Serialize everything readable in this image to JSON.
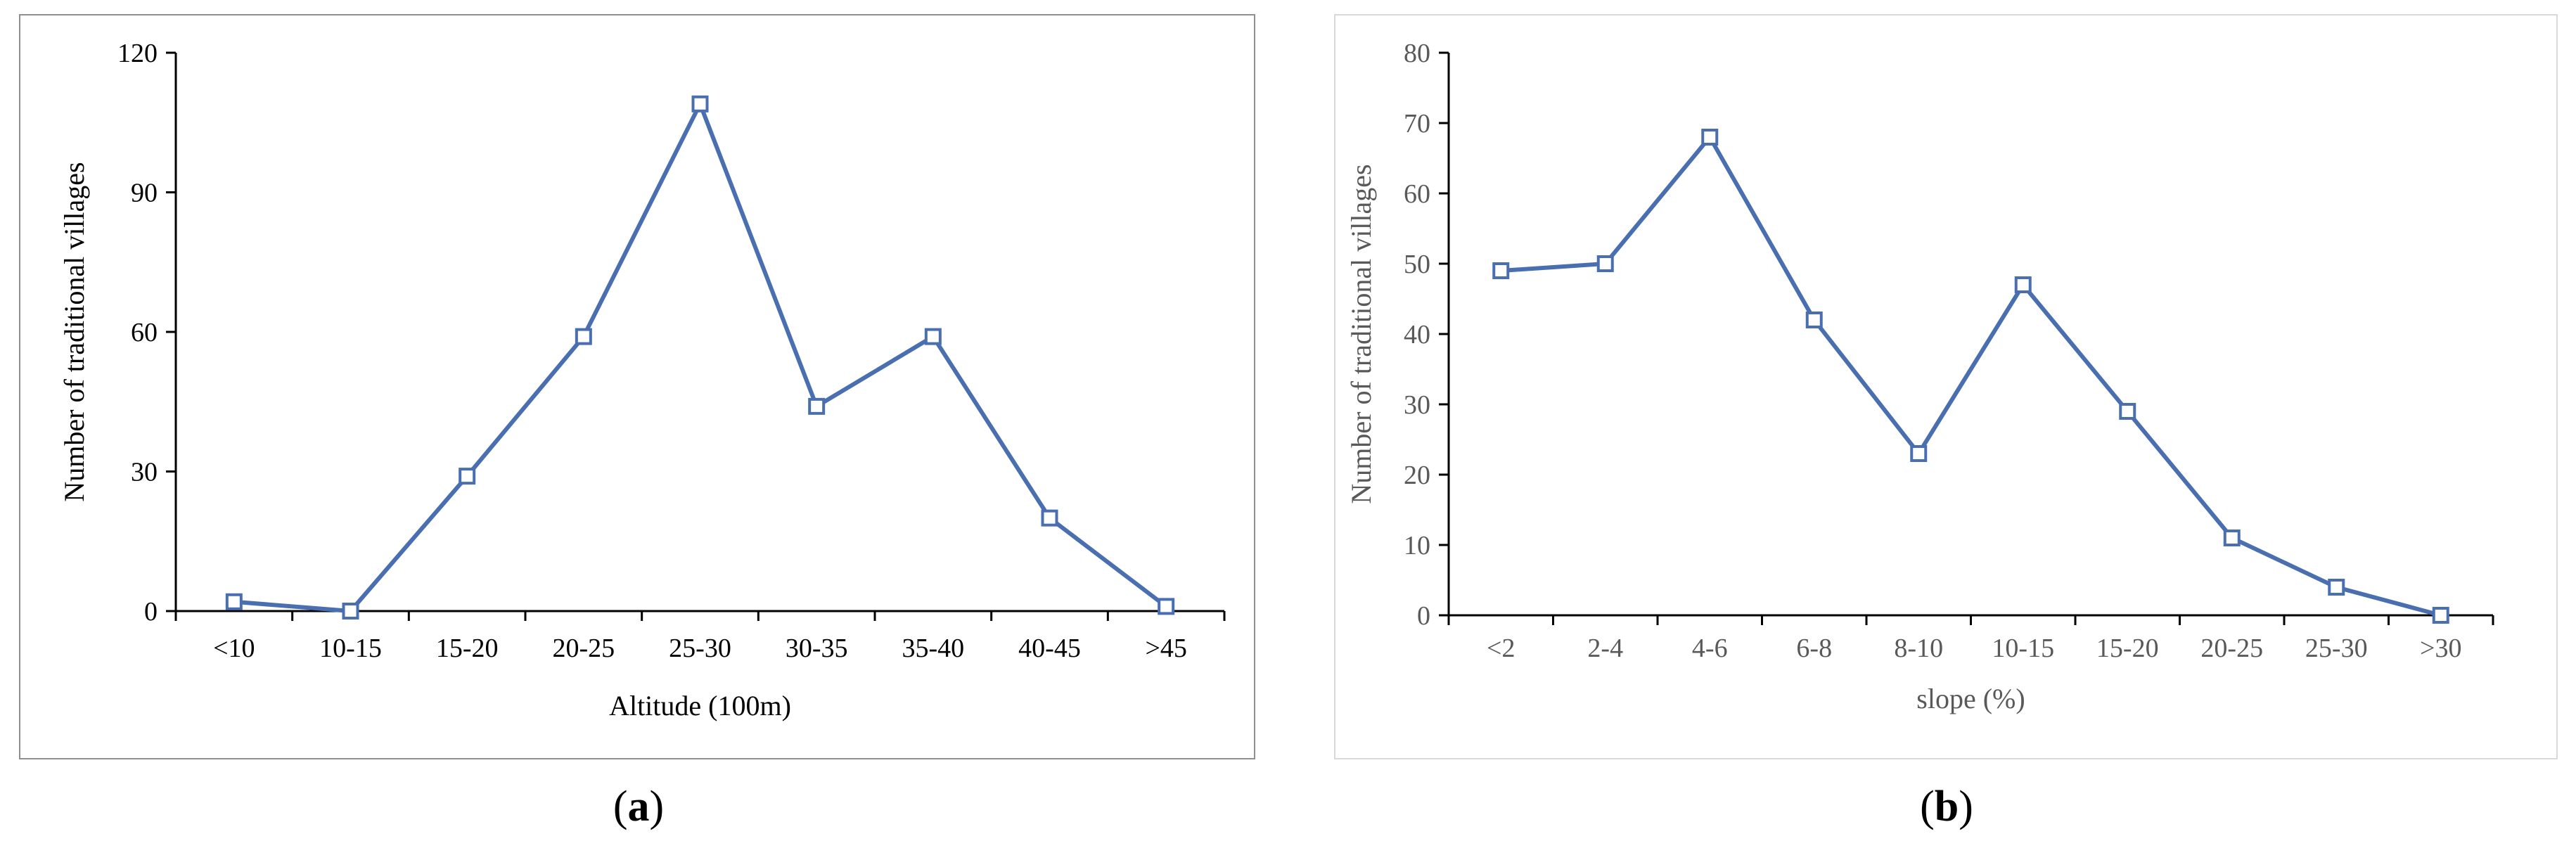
{
  "captions": {
    "a": "a",
    "b": "b"
  },
  "chart_data": [
    {
      "type": "line",
      "panel": "a",
      "title": "",
      "categories": [
        "<10",
        "10-15",
        "15-20",
        "20-25",
        "25-30",
        "30-35",
        "35-40",
        "40-45",
        ">45"
      ],
      "series": [
        {
          "name": "Number of traditional villages",
          "values": [
            2,
            0,
            29,
            59,
            109,
            44,
            59,
            20,
            1
          ]
        }
      ],
      "xlabel": "Altitude (100m)",
      "ylabel": "Number of traditional villages",
      "ylim": [
        0,
        120
      ],
      "yticks": [
        0,
        30,
        60,
        90,
        120
      ],
      "grid": false,
      "line_color": "#4a6fb0",
      "text_color": "#000000"
    },
    {
      "type": "line",
      "panel": "b",
      "title": "",
      "categories": [
        "<2",
        "2-4",
        "4-6",
        "6-8",
        "8-10",
        "10-15",
        "15-20",
        "20-25",
        "25-30",
        ">30"
      ],
      "series": [
        {
          "name": "Number of traditional villages",
          "values": [
            49,
            50,
            68,
            42,
            23,
            47,
            29,
            11,
            4,
            0
          ]
        }
      ],
      "xlabel": "slope (%)",
      "ylabel": "Number of traditional villages",
      "ylim": [
        0,
        80
      ],
      "yticks": [
        0,
        10,
        20,
        30,
        40,
        50,
        60,
        70,
        80
      ],
      "grid": false,
      "line_color": "#4a6fb0",
      "text_color": "#595959"
    }
  ]
}
